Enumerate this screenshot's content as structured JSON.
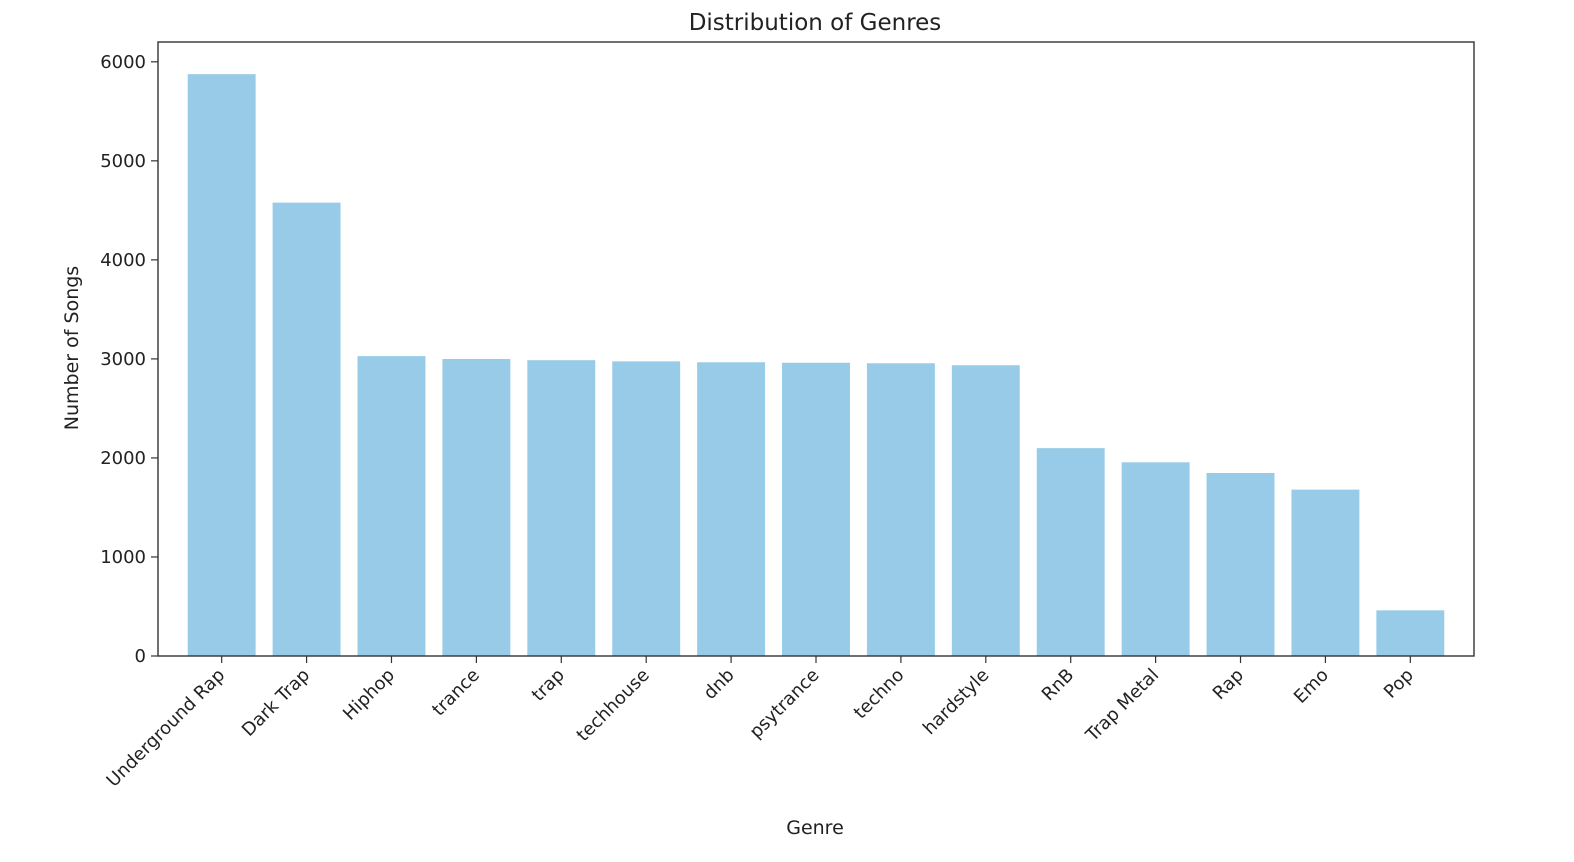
{
  "chart_data": {
    "type": "bar",
    "title": "Distribution of Genres",
    "xlabel": "Genre",
    "ylabel": "Number of Songs",
    "categories": [
      "Underground Rap",
      "Dark Trap",
      "Hiphop",
      "trance",
      "trap",
      "techhouse",
      "dnb",
      "psytrance",
      "techno",
      "hardstyle",
      "RnB",
      "Trap Metal",
      "Rap",
      "Emo",
      "Pop"
    ],
    "values": [
      5875,
      4578,
      3028,
      2999,
      2987,
      2975,
      2966,
      2961,
      2956,
      2936,
      2099,
      1956,
      1848,
      1680,
      461
    ],
    "ylim": [
      0,
      6200
    ],
    "yticks": [
      0,
      1000,
      2000,
      3000,
      4000,
      5000,
      6000
    ],
    "grid": false,
    "bar_color": "#97cbe8",
    "tick_label_rotation": -45
  }
}
